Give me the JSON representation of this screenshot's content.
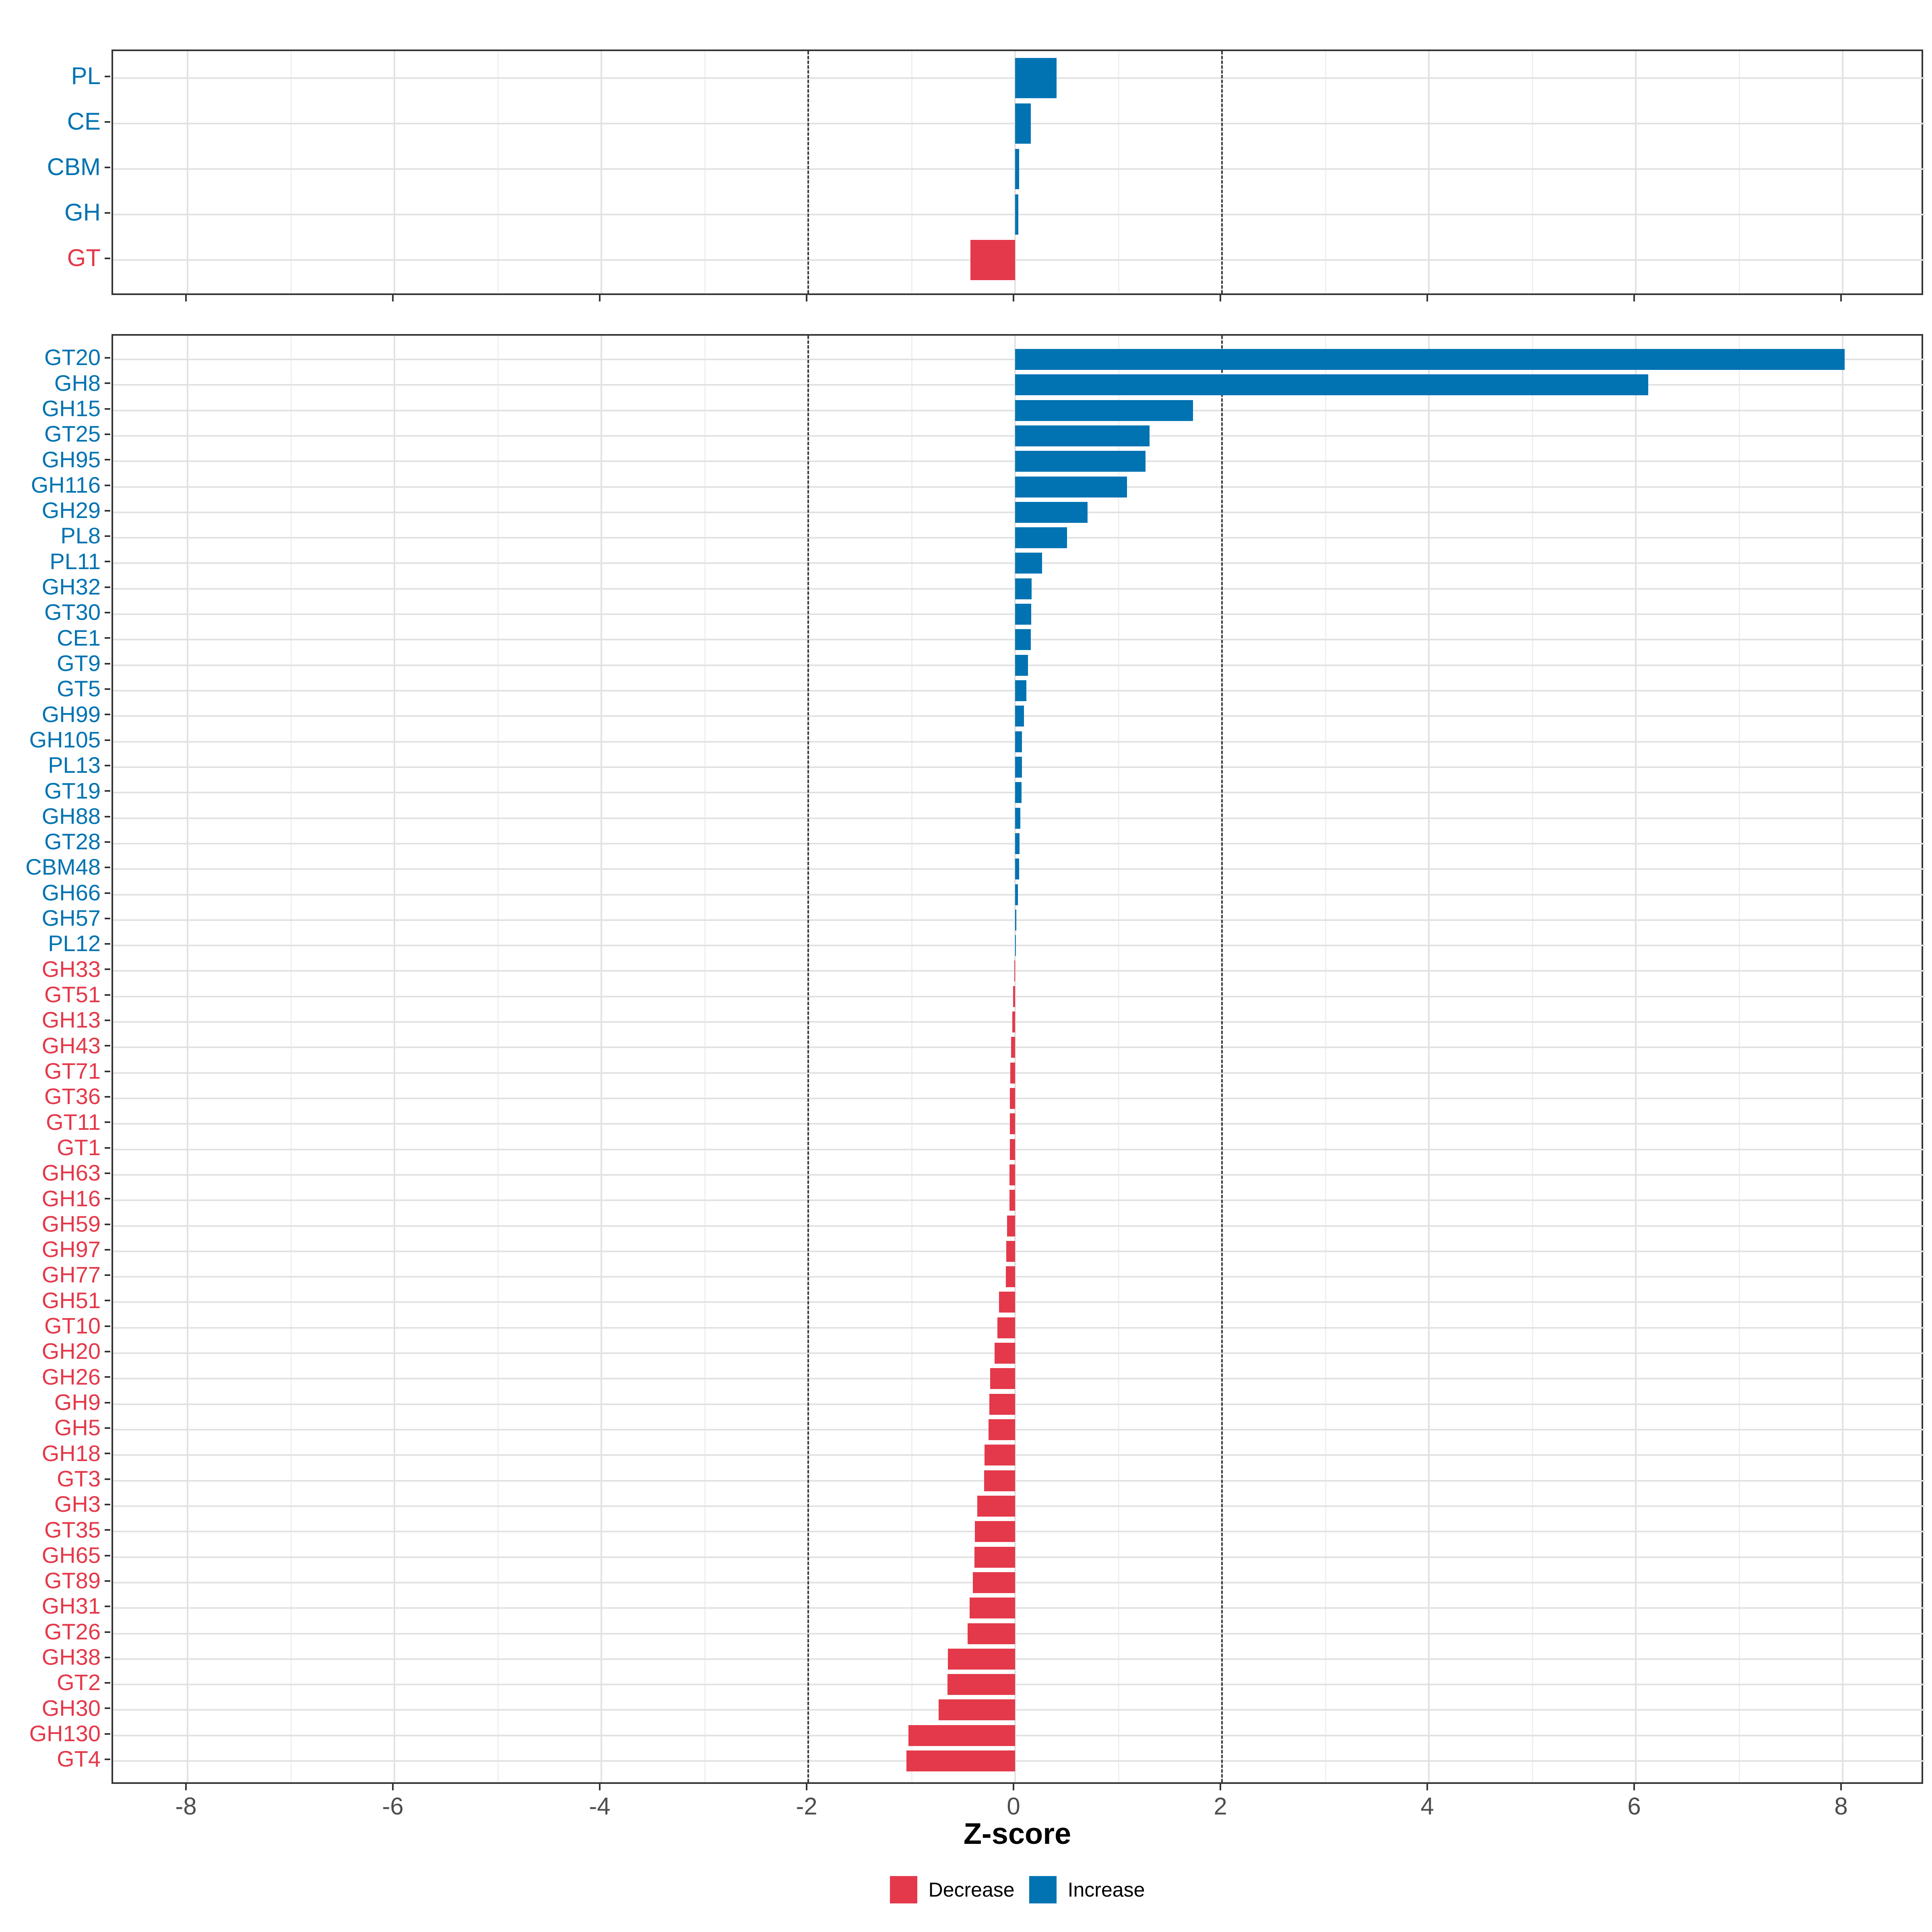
{
  "colors": {
    "increase": "#0173B2",
    "decrease": "#E4394A",
    "tick_label": "#4D4D4D",
    "grid_major": "#E2E2E2",
    "grid_minor": "#EFEFEF",
    "dashed_line": "#3A3A3A",
    "panel_border": "#333333",
    "tick_mark": "#333333"
  },
  "axis": {
    "label": "Z-score",
    "tick_labels": [
      "-8",
      "-6",
      "-4",
      "-2",
      "0",
      "2",
      "4",
      "6",
      "8"
    ]
  },
  "legend": {
    "items": [
      {
        "label": "Decrease",
        "color": "#E4394A"
      },
      {
        "label": "Increase",
        "color": "#0173B2"
      }
    ]
  },
  "chart_data": [
    {
      "type": "bar",
      "orientation": "horizontal",
      "panel": "top",
      "title": "",
      "xlabel": "Z-score",
      "ylabel": "",
      "xlim": [
        -8.7,
        8.8
      ],
      "xticks": [
        -8,
        -6,
        -4,
        -2,
        0,
        2,
        4,
        6,
        8
      ],
      "minor_ticks": [
        -7,
        -5,
        -3,
        -1,
        1,
        3,
        5,
        7
      ],
      "dashed_thresholds": [
        -2,
        2
      ],
      "grid": "vertical major+minor, horizontal major",
      "legend_position": "bottom",
      "categories": [
        "PL",
        "CE",
        "CBM",
        "GH",
        "GT"
      ],
      "values": [
        0.4,
        0.15,
        0.04,
        0.03,
        -0.43
      ],
      "direction_rule": {
        "positive": "Increase",
        "negative": "Decrease"
      }
    },
    {
      "type": "bar",
      "orientation": "horizontal",
      "panel": "bottom",
      "title": "",
      "xlabel": "Z-score",
      "ylabel": "",
      "xlim": [
        -8.7,
        8.8
      ],
      "xticks": [
        -8,
        -6,
        -4,
        -2,
        0,
        2,
        4,
        6,
        8
      ],
      "minor_ticks": [
        -7,
        -5,
        -3,
        -1,
        1,
        3,
        5,
        7
      ],
      "dashed_thresholds": [
        -2,
        2
      ],
      "grid": "vertical major+minor, horizontal major",
      "legend_position": "bottom",
      "categories": [
        "GT20",
        "GH8",
        "GH15",
        "GT25",
        "GH95",
        "GH116",
        "GH29",
        "PL8",
        "PL11",
        "GH32",
        "GT30",
        "CE1",
        "GT9",
        "GT5",
        "GH99",
        "GH105",
        "PL13",
        "GT19",
        "GH88",
        "GT28",
        "CBM48",
        "GH66",
        "GH57",
        "PL12",
        "GH33",
        "GT51",
        "GH13",
        "GH43",
        "GT71",
        "GT36",
        "GT11",
        "GT1",
        "GH63",
        "GH16",
        "GH59",
        "GH97",
        "GH77",
        "GH51",
        "GT10",
        "GH20",
        "GH26",
        "GH9",
        "GH5",
        "GH18",
        "GT3",
        "GH3",
        "GT35",
        "GH65",
        "GT89",
        "GH31",
        "GT26",
        "GH38",
        "GT2",
        "GH30",
        "GH130",
        "GT4"
      ],
      "values": [
        8.02,
        6.12,
        1.72,
        1.3,
        1.26,
        1.08,
        0.7,
        0.5,
        0.26,
        0.16,
        0.155,
        0.15,
        0.125,
        0.11,
        0.086,
        0.068,
        0.067,
        0.063,
        0.05,
        0.043,
        0.04,
        0.026,
        0.013,
        0.007,
        -0.008,
        -0.02,
        -0.026,
        -0.038,
        -0.048,
        -0.049,
        -0.051,
        -0.052,
        -0.053,
        -0.056,
        -0.077,
        -0.085,
        -0.088,
        -0.155,
        -0.17,
        -0.2,
        -0.24,
        -0.25,
        -0.255,
        -0.295,
        -0.3,
        -0.365,
        -0.39,
        -0.392,
        -0.41,
        -0.44,
        -0.46,
        -0.65,
        -0.652,
        -0.74,
        -1.03,
        -1.05
      ],
      "direction_rule": {
        "positive": "Increase",
        "negative": "Decrease"
      }
    }
  ]
}
